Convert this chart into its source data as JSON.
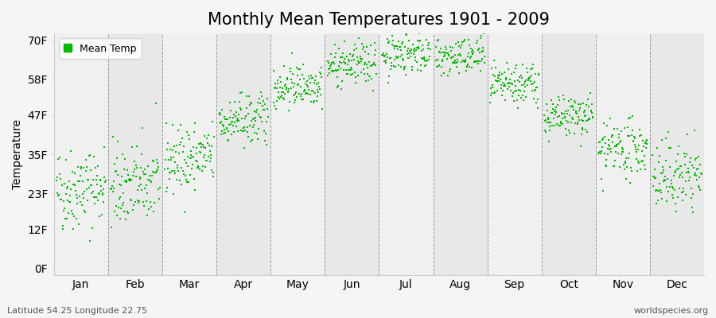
{
  "title": "Monthly Mean Temperatures 1901 - 2009",
  "ylabel": "Temperature",
  "subtitle_left": "Latitude 54.25 Longitude 22.75",
  "subtitle_right": "worldspecies.org",
  "legend_label": "Mean Temp",
  "ytick_labels": [
    "0F",
    "12F",
    "23F",
    "35F",
    "47F",
    "58F",
    "70F"
  ],
  "ytick_values": [
    0,
    12,
    23,
    35,
    47,
    58,
    70
  ],
  "ylim": [
    -2,
    72
  ],
  "months": [
    "Jan",
    "Feb",
    "Mar",
    "Apr",
    "May",
    "Jun",
    "Jul",
    "Aug",
    "Sep",
    "Oct",
    "Nov",
    "Dec"
  ],
  "dot_color": "#00bb00",
  "background_color": "#f5f5f5",
  "band_colors": [
    "#f0f0f0",
    "#e8e8e8"
  ],
  "title_fontsize": 15,
  "axis_fontsize": 10,
  "legend_fontsize": 9,
  "n_years": 109,
  "year_start": 1901,
  "year_end": 2009,
  "monthly_means_c": [
    -4.5,
    -4.0,
    0.5,
    7.0,
    13.0,
    16.5,
    18.5,
    17.8,
    13.0,
    7.5,
    2.0,
    -2.5
  ],
  "monthly_stds_c": [
    3.5,
    3.5,
    2.8,
    2.2,
    1.8,
    1.8,
    1.8,
    1.8,
    1.8,
    1.8,
    2.3,
    3.0
  ],
  "warming_trend_c_per_year": 0.008
}
